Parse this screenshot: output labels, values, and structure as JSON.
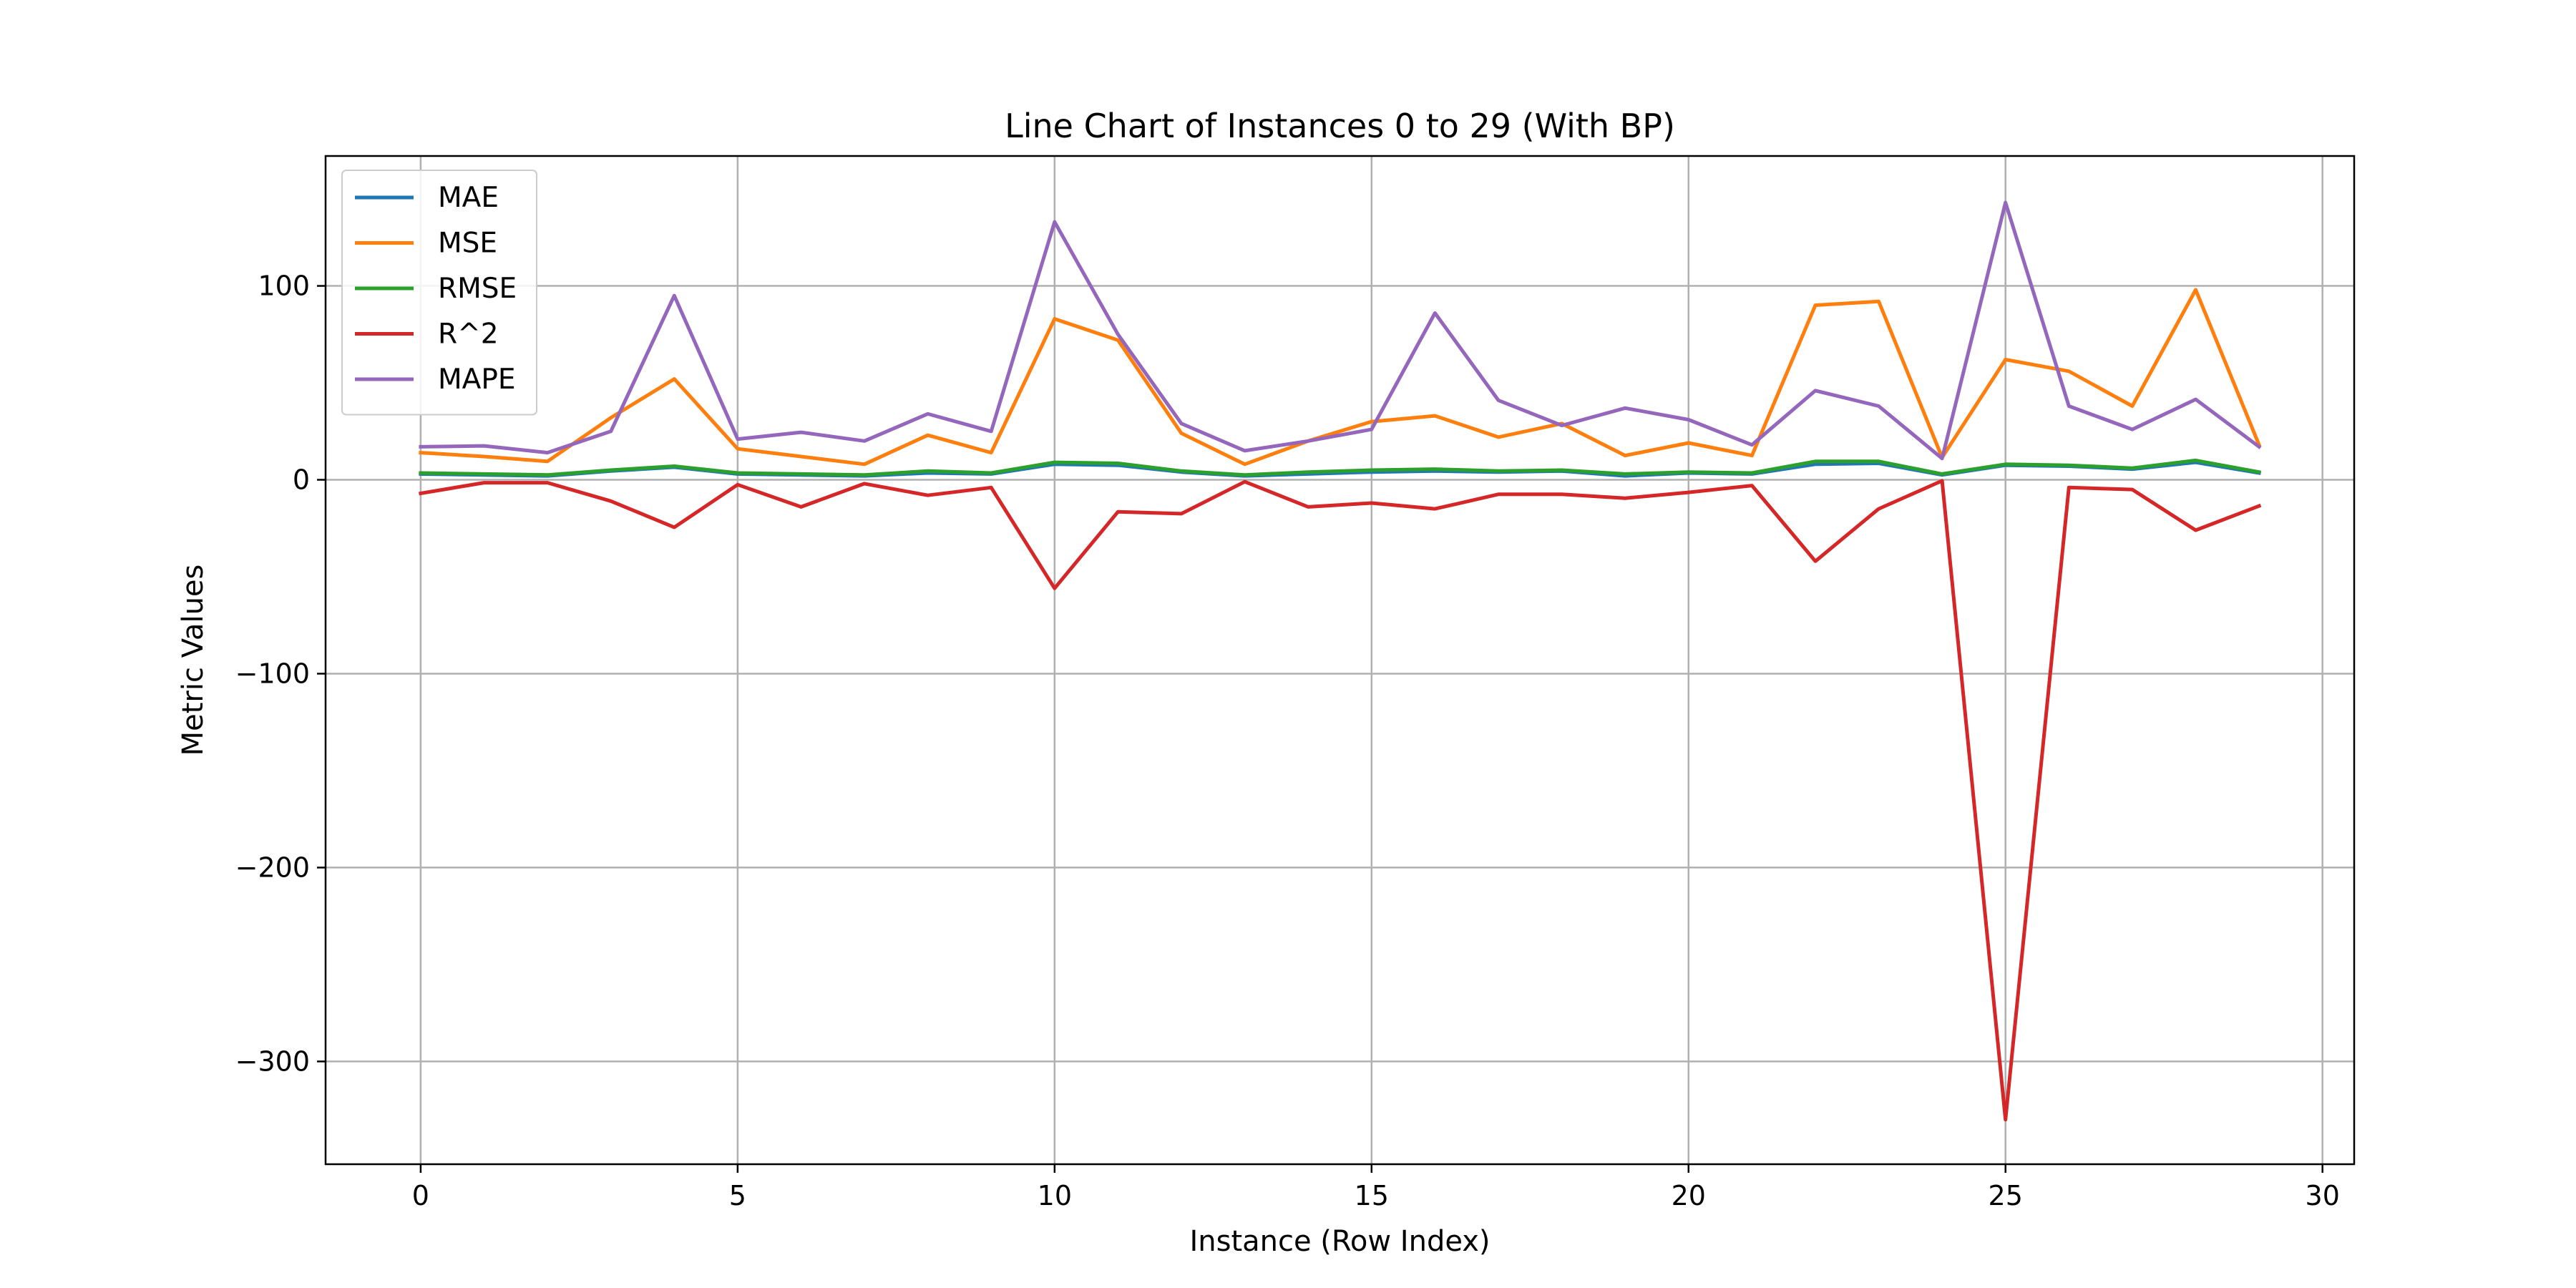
{
  "chart_data": {
    "type": "line",
    "title": "Line Chart of Instances 0 to 29 (With BP)",
    "xlabel": "Instance (Row Index)",
    "ylabel": "Metric Values",
    "xlim": [
      -1.5,
      30.5
    ],
    "ylim": [
      -353,
      167
    ],
    "xticks": [
      0,
      5,
      10,
      15,
      20,
      25,
      30
    ],
    "yticks": [
      -300,
      -200,
      -100,
      0,
      100
    ],
    "ytick_labels": [
      "−300",
      "−200",
      "−100",
      "0",
      "100"
    ],
    "grid": true,
    "legend_position": "top-left",
    "x": [
      0,
      1,
      2,
      3,
      4,
      5,
      6,
      7,
      8,
      9,
      10,
      11,
      12,
      13,
      14,
      15,
      16,
      17,
      18,
      19,
      20,
      21,
      22,
      23,
      24,
      25,
      26,
      27,
      28,
      29
    ],
    "series": [
      {
        "name": "MAE",
        "color": "#1f77b4",
        "values": [
          3,
          2.5,
          2,
          4.5,
          6.5,
          3,
          2.5,
          2,
          3.5,
          3,
          8,
          7.5,
          4,
          2,
          3,
          4,
          4.5,
          4,
          4.5,
          2,
          3.5,
          3,
          8,
          8.5,
          2.5,
          7.5,
          7,
          5.5,
          9,
          3.5
        ]
      },
      {
        "name": "MSE",
        "color": "#ff7f0e",
        "values": [
          14,
          12,
          9.5,
          32,
          52,
          16,
          12,
          8,
          23,
          14,
          83,
          72,
          24,
          8,
          20,
          30,
          33,
          22,
          29,
          12.5,
          19,
          12.5,
          90,
          92,
          11.5,
          62,
          56,
          38,
          98,
          18
        ]
      },
      {
        "name": "RMSE",
        "color": "#2ca02c",
        "values": [
          3.5,
          3,
          2.5,
          5,
          7,
          3.5,
          3,
          2.5,
          4.5,
          3.5,
          9,
          8.5,
          4.5,
          2.5,
          4,
          5,
          5.5,
          4.5,
          5,
          3,
          4,
          3.5,
          9.5,
          9.5,
          3,
          8,
          7.5,
          6,
          10,
          4
        ]
      },
      {
        "name": "R^2",
        "color": "#d62728",
        "values": [
          -7,
          -1.5,
          -1.5,
          -11,
          -24.5,
          -2.5,
          -14,
          -2,
          -8,
          -4,
          -56,
          -16.5,
          -17.5,
          -1,
          -14,
          -12,
          -15,
          -7.5,
          -7.5,
          -9.5,
          -6.5,
          -3,
          -42,
          -15,
          -0.5,
          -330,
          -4,
          -5,
          -26,
          -13.5
        ]
      },
      {
        "name": "MAPE",
        "color": "#9467bd",
        "values": [
          17,
          17.5,
          14,
          25,
          95,
          21,
          24.5,
          20,
          34,
          25,
          133,
          75,
          29,
          15,
          20,
          26,
          86,
          41,
          28,
          37,
          31,
          18,
          46,
          38,
          11,
          143,
          38,
          26,
          41.5,
          17
        ]
      }
    ]
  }
}
